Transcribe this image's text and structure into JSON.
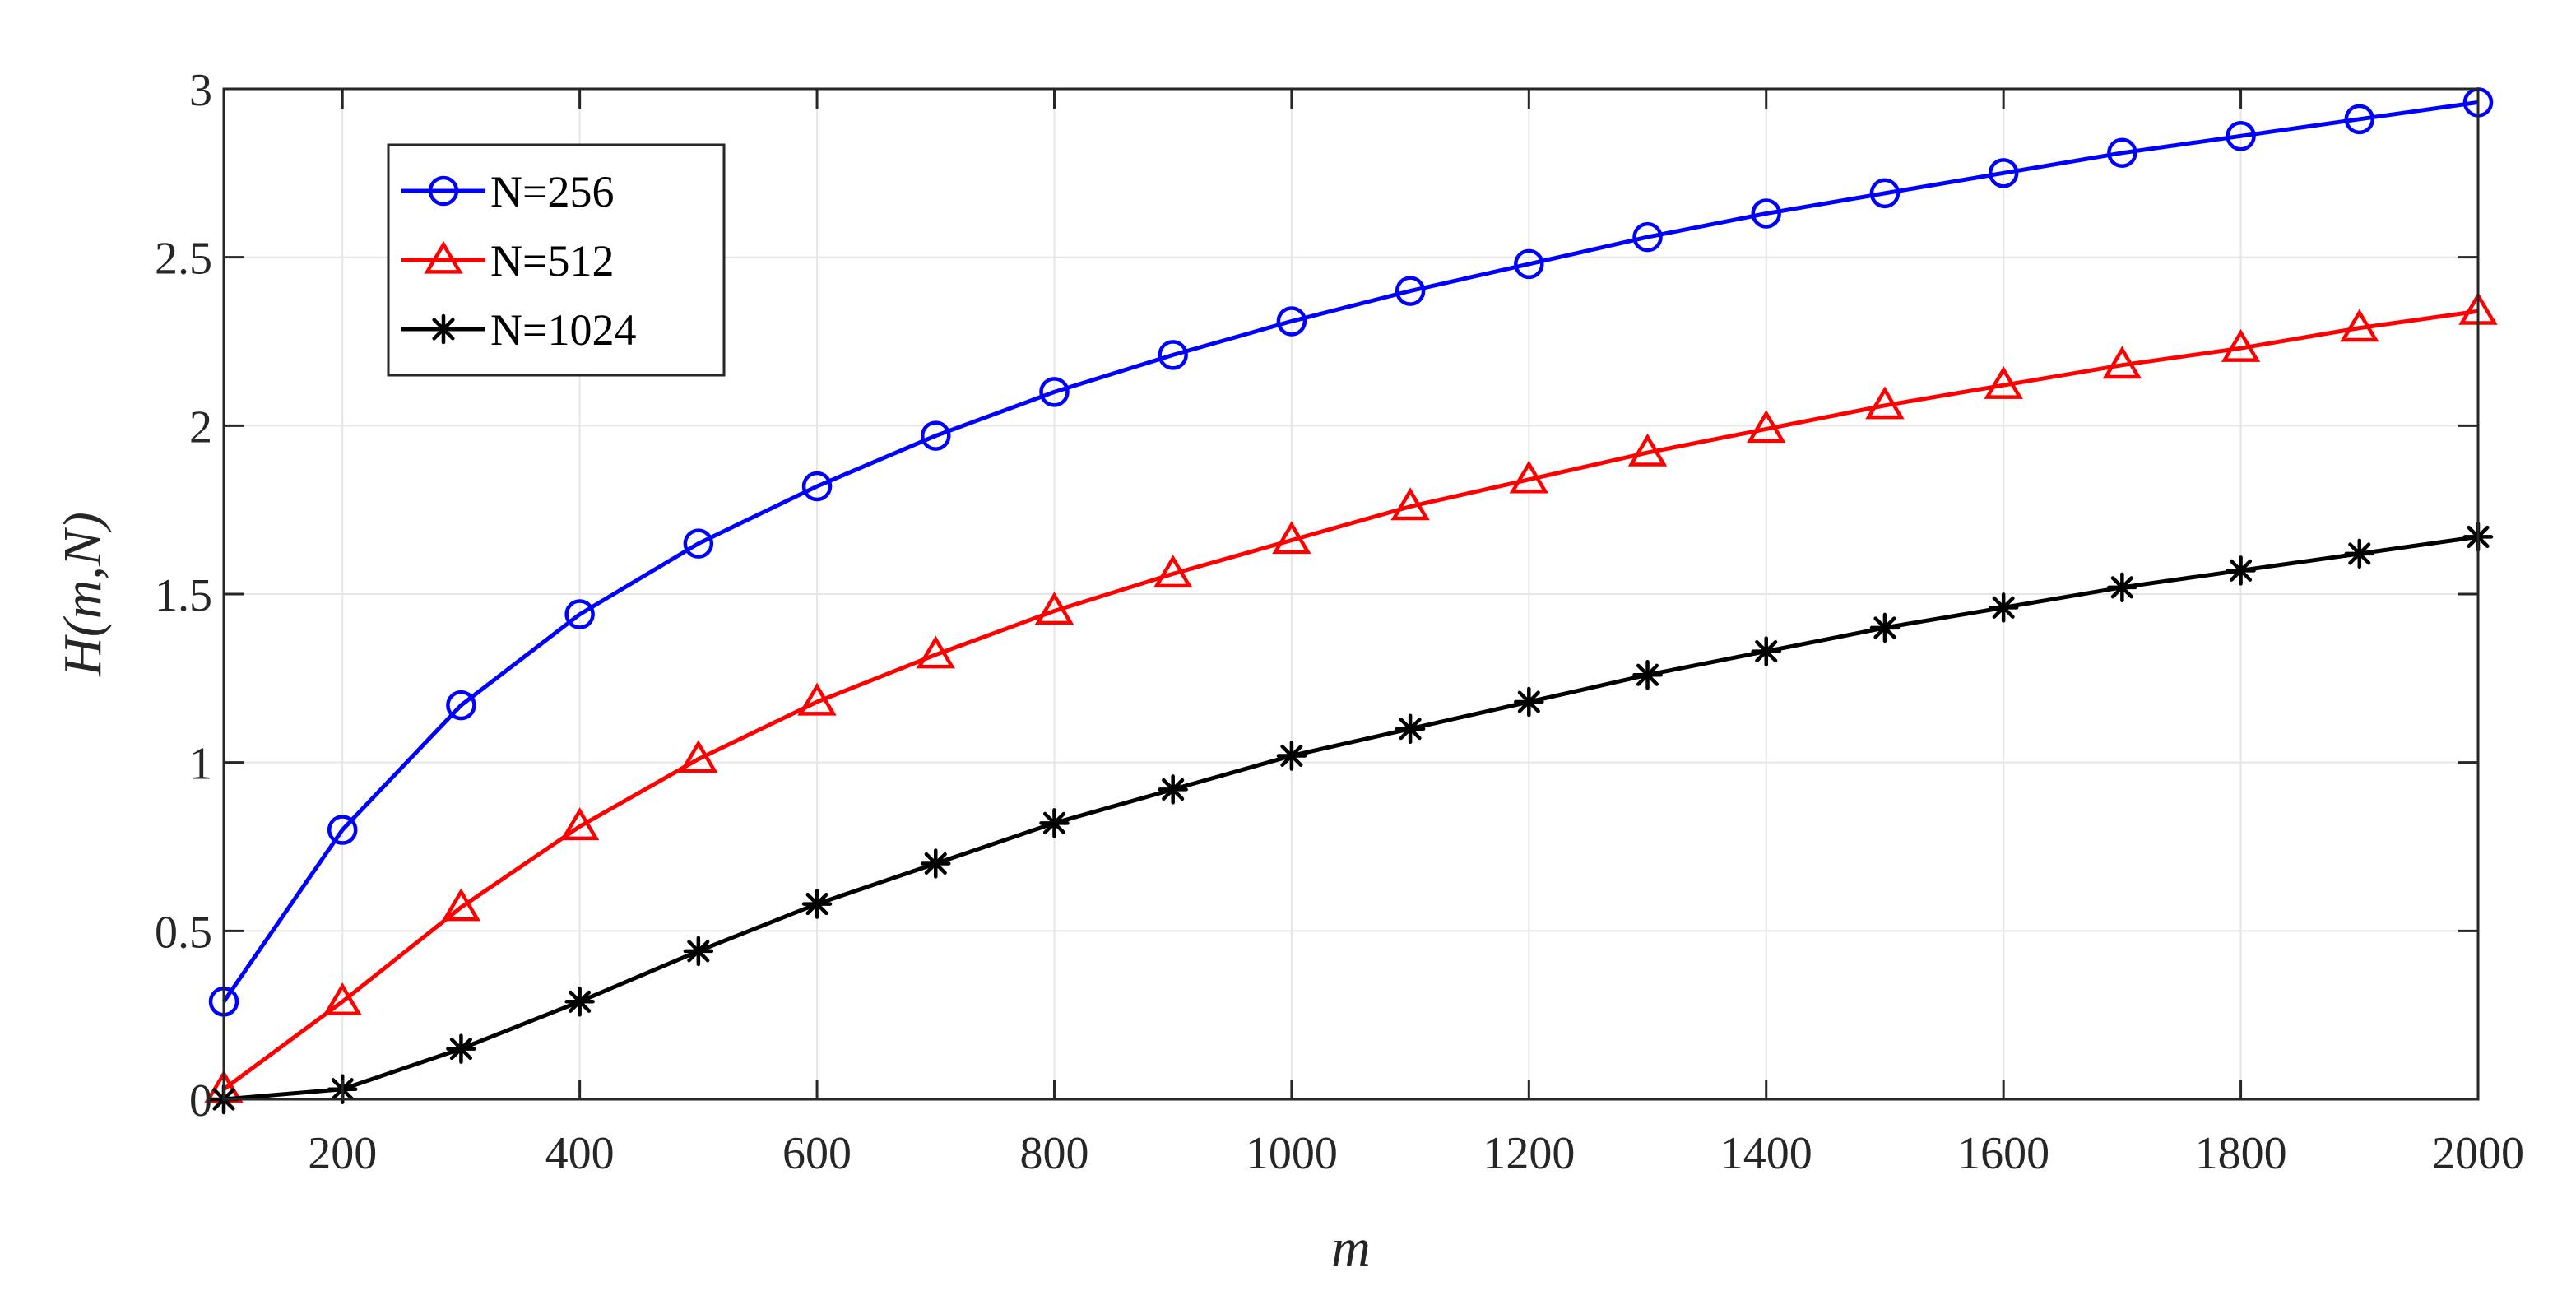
{
  "chart_data": {
    "type": "line",
    "title": "",
    "xlabel": "m",
    "ylabel": "H(m,N)",
    "xlim": [
      100,
      2000
    ],
    "ylim": [
      0,
      3
    ],
    "xticks": [
      200,
      400,
      600,
      800,
      1000,
      1200,
      1400,
      1600,
      1800,
      2000
    ],
    "yticks": [
      0,
      0.5,
      1,
      1.5,
      2,
      2.5,
      3
    ],
    "xtick_labels": [
      "200",
      "400",
      "600",
      "800",
      "1000",
      "1200",
      "1400",
      "1600",
      "1800",
      "2000"
    ],
    "ytick_labels": [
      "0",
      "0.5",
      "1",
      "1.5",
      "2",
      "2.5",
      "3"
    ],
    "grid": true,
    "legend_position": "top-left",
    "x": [
      100,
      200,
      300,
      400,
      500,
      600,
      700,
      800,
      900,
      1000,
      1100,
      1200,
      1300,
      1400,
      1500,
      1600,
      1700,
      1800,
      1900,
      2000
    ],
    "series": [
      {
        "name": "N=256",
        "color": "#0000ff",
        "marker": "circle",
        "values": [
          0.29,
          0.8,
          1.17,
          1.44,
          1.65,
          1.82,
          1.97,
          2.1,
          2.21,
          2.31,
          2.4,
          2.48,
          2.56,
          2.63,
          2.69,
          2.75,
          2.81,
          2.86,
          2.91,
          2.96
        ]
      },
      {
        "name": "N=512",
        "color": "#ff0000",
        "marker": "triangle",
        "values": [
          0.03,
          0.29,
          0.57,
          0.81,
          1.01,
          1.18,
          1.32,
          1.45,
          1.56,
          1.66,
          1.76,
          1.84,
          1.92,
          1.99,
          2.06,
          2.12,
          2.18,
          2.23,
          2.29,
          2.34
        ]
      },
      {
        "name": "N=1024",
        "color": "#000000",
        "marker": "asterisk",
        "values": [
          0.0,
          0.03,
          0.15,
          0.29,
          0.44,
          0.58,
          0.7,
          0.82,
          0.92,
          1.02,
          1.1,
          1.18,
          1.26,
          1.33,
          1.4,
          1.46,
          1.52,
          1.57,
          1.62,
          1.67
        ]
      }
    ]
  }
}
